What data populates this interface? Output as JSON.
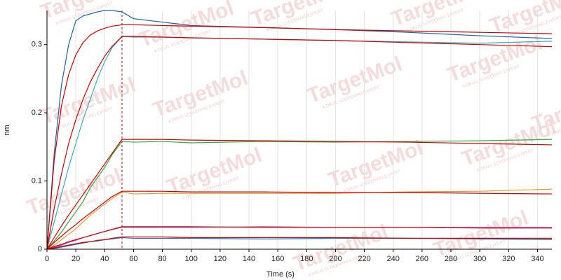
{
  "chart_data": {
    "type": "line",
    "xlabel": "Time (s)",
    "ylabel": "nm",
    "watermark": "TargetMol",
    "watermark_tagline": "A DRUG SCREENING EXPERT",
    "x": [
      0,
      5,
      10,
      15,
      20,
      25,
      30,
      35,
      40,
      45,
      52,
      60,
      80,
      100,
      150,
      200,
      250,
      300,
      350
    ],
    "xlim": [
      0,
      350
    ],
    "xticks": [
      0,
      20,
      40,
      60,
      80,
      100,
      120,
      140,
      160,
      180,
      200,
      220,
      240,
      260,
      280,
      300,
      320,
      340
    ],
    "ylim": [
      0,
      0.35
    ],
    "yticks": [
      0,
      0.1,
      0.2,
      0.3
    ],
    "grid": "x",
    "vlines": [
      {
        "x": 52,
        "color": "#cc0000",
        "dash": true
      }
    ],
    "series": [
      {
        "color": "#1f5fa8",
        "values": [
          0,
          0.14,
          0.24,
          0.3,
          0.335,
          0.342,
          0.345,
          0.348,
          0.35,
          0.35,
          0.348,
          0.338,
          0.333,
          0.328,
          0.325,
          0.322,
          0.318,
          0.313,
          0.309
        ]
      },
      {
        "color": "#cc0000",
        "values": [
          0,
          0.13,
          0.21,
          0.256,
          0.285,
          0.303,
          0.314,
          0.32,
          0.324,
          0.327,
          0.329,
          0.329,
          0.328,
          0.327,
          0.325,
          0.322,
          0.32,
          0.318,
          0.316
        ]
      },
      {
        "color": "#3fa7c0",
        "values": [
          0,
          0.04,
          0.08,
          0.12,
          0.155,
          0.19,
          0.22,
          0.25,
          0.275,
          0.295,
          0.312,
          0.311,
          0.311,
          0.31,
          0.308,
          0.306,
          0.304,
          0.302,
          0.305
        ]
      },
      {
        "color": "#cc0000",
        "values": [
          0,
          0.06,
          0.11,
          0.155,
          0.19,
          0.22,
          0.245,
          0.265,
          0.283,
          0.297,
          0.312,
          0.312,
          0.311,
          0.31,
          0.308,
          0.306,
          0.303,
          0.3,
          0.297
        ]
      },
      {
        "color": "#3aa63a",
        "values": [
          0,
          0.012,
          0.025,
          0.04,
          0.055,
          0.07,
          0.09,
          0.105,
          0.12,
          0.138,
          0.158,
          0.157,
          0.158,
          0.156,
          0.158,
          0.157,
          0.158,
          0.159,
          0.161
        ]
      },
      {
        "color": "#cc0000",
        "values": [
          0,
          0.017,
          0.034,
          0.05,
          0.065,
          0.08,
          0.095,
          0.11,
          0.125,
          0.14,
          0.161,
          0.161,
          0.161,
          0.16,
          0.159,
          0.158,
          0.157,
          0.155,
          0.153
        ]
      },
      {
        "color": "#f0962e",
        "values": [
          0,
          0.006,
          0.014,
          0.022,
          0.03,
          0.04,
          0.05,
          0.058,
          0.066,
          0.074,
          0.084,
          0.081,
          0.082,
          0.082,
          0.082,
          0.082,
          0.084,
          0.085,
          0.088
        ]
      },
      {
        "color": "#cc0000",
        "values": [
          0,
          0.01,
          0.019,
          0.028,
          0.036,
          0.045,
          0.053,
          0.061,
          0.069,
          0.077,
          0.085,
          0.085,
          0.085,
          0.084,
          0.084,
          0.083,
          0.083,
          0.082,
          0.081
        ]
      },
      {
        "color": "#a04cc0",
        "values": [
          0,
          0.003,
          0.006,
          0.01,
          0.013,
          0.017,
          0.02,
          0.023,
          0.026,
          0.029,
          0.032,
          0.032,
          0.032,
          0.032,
          0.033,
          0.032,
          0.032,
          0.032,
          0.032
        ]
      },
      {
        "color": "#cc0000",
        "values": [
          0,
          0.004,
          0.007,
          0.011,
          0.014,
          0.017,
          0.02,
          0.023,
          0.026,
          0.029,
          0.033,
          0.033,
          0.033,
          0.033,
          0.032,
          0.032,
          0.032,
          0.031,
          0.031
        ]
      },
      {
        "color": "#2a6fb5",
        "values": [
          0,
          0.001,
          0.003,
          0.005,
          0.007,
          0.009,
          0.011,
          0.012,
          0.014,
          0.015,
          0.017,
          0.016,
          0.016,
          0.016,
          0.015,
          0.016,
          0.016,
          0.015,
          0.014
        ]
      },
      {
        "color": "#cc0000",
        "values": [
          0,
          0.002,
          0.004,
          0.006,
          0.008,
          0.01,
          0.011,
          0.013,
          0.014,
          0.016,
          0.018,
          0.018,
          0.018,
          0.017,
          0.017,
          0.017,
          0.016,
          0.016,
          0.016
        ]
      }
    ]
  }
}
